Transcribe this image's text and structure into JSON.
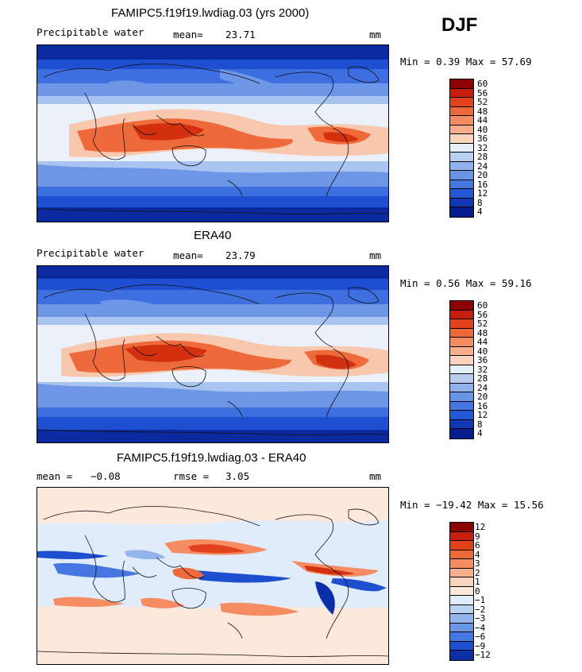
{
  "season": "DJF",
  "panels": [
    {
      "title": "FAMIPC5.f19f19.lwdiag.03 (yrs 2000)",
      "left_label": "Precipitable water",
      "stat1_label": "mean=",
      "stat1_value": "23.71",
      "stat2_label": "",
      "stat2_value": "",
      "units": "mm",
      "min_max": "Min =   0.39 Max =  57.69",
      "colorbar_labels": [
        "60",
        "56",
        "52",
        "48",
        "44",
        "40",
        "36",
        "32",
        "28",
        "24",
        "20",
        "16",
        "12",
        "8",
        "4"
      ],
      "colorbar_colors": [
        "#8b0000",
        "#c81e0e",
        "#e2411d",
        "#ef6a3a",
        "#f58c62",
        "#f8ad8c",
        "#fbd4bd",
        "#e6f0fb",
        "#b8cff2",
        "#8fb1ec",
        "#6a94e6",
        "#4677e0",
        "#2458d6",
        "#1038b7",
        "#051d8f"
      ]
    },
    {
      "title": "ERA40",
      "left_label": "Precipitable water",
      "stat1_label": "mean=",
      "stat1_value": "23.79",
      "stat2_label": "",
      "stat2_value": "",
      "units": "mm",
      "min_max": "Min =   0.56 Max =  59.16",
      "colorbar_labels": [
        "60",
        "56",
        "52",
        "48",
        "44",
        "40",
        "36",
        "32",
        "28",
        "24",
        "20",
        "16",
        "12",
        "8",
        "4"
      ],
      "colorbar_colors": [
        "#8b0000",
        "#c81e0e",
        "#e2411d",
        "#ef6a3a",
        "#f58c62",
        "#f8ad8c",
        "#fbd4bd",
        "#e6f0fb",
        "#b8cff2",
        "#8fb1ec",
        "#6a94e6",
        "#4677e0",
        "#2458d6",
        "#1038b7",
        "#051d8f"
      ]
    },
    {
      "title": "FAMIPC5.f19f19.lwdiag.03 - ERA40",
      "left_label": "",
      "stat1_label": "mean =",
      "stat1_value": "−0.08",
      "stat2_label": "rmse =",
      "stat2_value": "3.05",
      "units": "mm",
      "min_max": "Min = −19.42 Max =  15.56",
      "colorbar_labels": [
        "12",
        "9",
        "6",
        "4",
        "3",
        "2",
        "1",
        "0",
        "−1",
        "−2",
        "−3",
        "−4",
        "−6",
        "−9",
        "−12"
      ],
      "colorbar_colors": [
        "#8b0000",
        "#c81e0e",
        "#e2411d",
        "#ef6a3a",
        "#f58c62",
        "#f8ad8c",
        "#fbd4bd",
        "#fde9dc",
        "#e1ecfb",
        "#bcd2f3",
        "#94b5ec",
        "#6c96e5",
        "#4677e0",
        "#1d4fd0",
        "#0a2fa6"
      ]
    }
  ],
  "colors": {
    "coast": "#111111",
    "deep_blue": "#0b2aa0",
    "mid_blue": "#3d6fe0",
    "light_blue": "#a9c4f0",
    "pale": "#f2f6fc",
    "warm_light": "#f8c7ad",
    "warm_mid": "#ee6a3b",
    "warm_dark": "#d3300f",
    "diff_bg": "#f3e3d8"
  }
}
